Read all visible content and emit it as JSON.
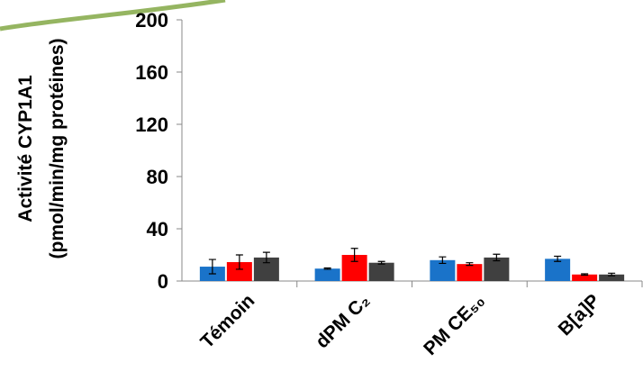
{
  "chart_data": {
    "type": "bar",
    "ylabel": [
      "Activité  CYP1A1",
      "(pmol/min/mg protéines)"
    ],
    "categories": [
      "Témoin",
      "dPM C₂",
      "PM CE₅₀",
      "B[a]P"
    ],
    "series": [
      {
        "color": "#1a73c9",
        "values": [
          11,
          9.5,
          16,
          17
        ],
        "errors": [
          5.5,
          0.5,
          2.5,
          2
        ]
      },
      {
        "color": "#ff0000",
        "values": [
          14.5,
          20,
          13,
          5
        ],
        "errors": [
          5.5,
          5,
          1,
          0.5
        ]
      },
      {
        "color": "#404040",
        "values": [
          18,
          14,
          18,
          5
        ],
        "errors": [
          4,
          1,
          2.5,
          1
        ]
      }
    ],
    "ylim": [
      0,
      200
    ],
    "yticks": [
      0,
      40,
      80,
      120,
      160,
      200
    ],
    "grid": false
  }
}
